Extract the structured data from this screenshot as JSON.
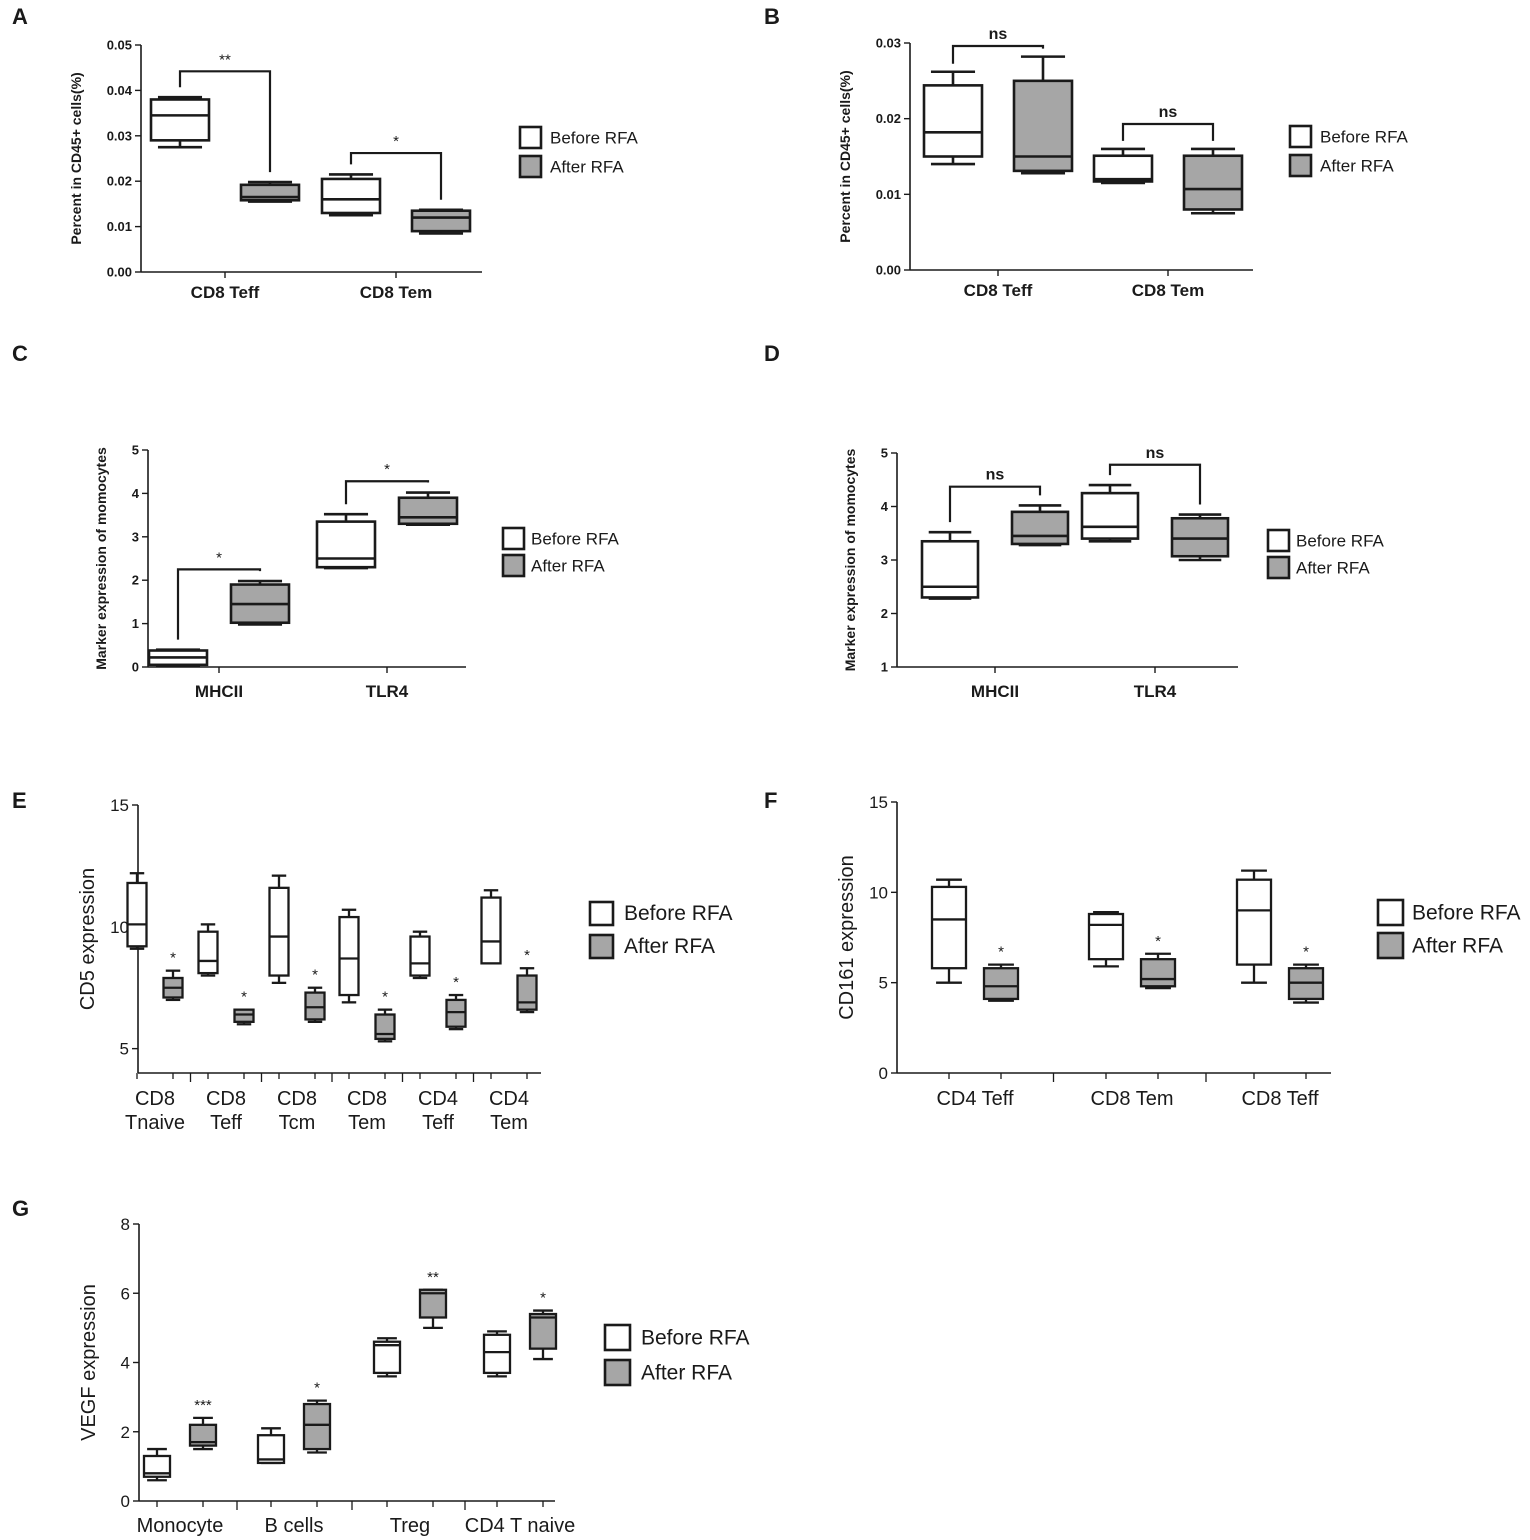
{
  "colors": {
    "before": "#ffffff",
    "after": "#a6a6a6",
    "stroke": "#1a1a1a"
  },
  "chart_data": [
    {
      "panel": "A",
      "type": "box",
      "ylabel": "Percent in CD45+ cells(%)",
      "ylim": [
        0,
        0.05
      ],
      "yticks": [
        0,
        0.01,
        0.02,
        0.03,
        0.04,
        0.05
      ],
      "ytick_labels": [
        "0.00",
        "0.01",
        "0.02",
        "0.03",
        "0.04",
        "0.05"
      ],
      "categories": [
        "CD8 Teff",
        "CD8 Tem"
      ],
      "legend": [
        "Before RFA",
        "After RFA"
      ],
      "series": [
        {
          "name": "Before RFA",
          "boxes": [
            {
              "min": 0.0275,
              "q1": 0.029,
              "median": 0.0345,
              "q3": 0.038,
              "max": 0.0385
            },
            {
              "min": 0.0125,
              "q1": 0.013,
              "median": 0.016,
              "q3": 0.0205,
              "max": 0.0215
            }
          ]
        },
        {
          "name": "After RFA",
          "boxes": [
            {
              "min": 0.0155,
              "q1": 0.0158,
              "median": 0.0165,
              "q3": 0.0192,
              "max": 0.0198
            },
            {
              "min": 0.0085,
              "q1": 0.009,
              "median": 0.012,
              "q3": 0.0135,
              "max": 0.0137
            }
          ]
        }
      ],
      "significance": [
        {
          "category": 0,
          "label": "**",
          "level": 0.0442
        },
        {
          "category": 1,
          "label": "*",
          "level": 0.0262
        }
      ]
    },
    {
      "panel": "B",
      "type": "box",
      "ylabel": "Percent in CD45+ cells(%)",
      "ylim": [
        0,
        0.03
      ],
      "yticks": [
        0,
        0.01,
        0.02,
        0.03
      ],
      "ytick_labels": [
        "0.00",
        "0.01",
        "0.02",
        "0.03"
      ],
      "categories": [
        "CD8 Teff",
        "CD8 Tem"
      ],
      "legend": [
        "Before RFA",
        "After RFA"
      ],
      "series": [
        {
          "name": "Before RFA",
          "boxes": [
            {
              "min": 0.014,
              "q1": 0.015,
              "median": 0.0182,
              "q3": 0.0244,
              "max": 0.0262
            },
            {
              "min": 0.0115,
              "q1": 0.0117,
              "median": 0.012,
              "q3": 0.0151,
              "max": 0.016
            }
          ]
        },
        {
          "name": "After RFA",
          "boxes": [
            {
              "min": 0.0128,
              "q1": 0.0131,
              "median": 0.015,
              "q3": 0.025,
              "max": 0.0282
            },
            {
              "min": 0.0075,
              "q1": 0.008,
              "median": 0.0107,
              "q3": 0.0151,
              "max": 0.016
            }
          ]
        }
      ],
      "significance": [
        {
          "category": 0,
          "label": "ns",
          "level": 0.0296
        },
        {
          "category": 1,
          "label": "ns",
          "level": 0.0193
        }
      ]
    },
    {
      "panel": "C",
      "type": "box",
      "ylabel": "Marker expression of momocytes",
      "ylim": [
        0,
        5
      ],
      "yticks": [
        0,
        1,
        2,
        3,
        4,
        5
      ],
      "ytick_labels": [
        "0",
        "1",
        "2",
        "3",
        "4",
        "5"
      ],
      "categories": [
        "MHCII",
        "TLR4"
      ],
      "legend": [
        "Before RFA",
        "After RFA"
      ],
      "series": [
        {
          "name": "Before RFA",
          "boxes": [
            {
              "min": 0.03,
              "q1": 0.05,
              "median": 0.22,
              "q3": 0.38,
              "max": 0.4
            },
            {
              "min": 2.28,
              "q1": 2.3,
              "median": 2.5,
              "q3": 3.35,
              "max": 3.52
            }
          ]
        },
        {
          "name": "After RFA",
          "boxes": [
            {
              "min": 0.98,
              "q1": 1.02,
              "median": 1.45,
              "q3": 1.9,
              "max": 1.98
            },
            {
              "min": 3.28,
              "q1": 3.3,
              "median": 3.45,
              "q3": 3.9,
              "max": 4.02
            }
          ]
        }
      ],
      "significance": [
        {
          "category": 0,
          "label": "*",
          "level": 2.25
        },
        {
          "category": 1,
          "label": "*",
          "level": 4.28
        }
      ]
    },
    {
      "panel": "D",
      "type": "box",
      "ylabel": "Marker expression of momocytes",
      "ylim": [
        1,
        5
      ],
      "yticks": [
        1,
        2,
        3,
        4,
        5
      ],
      "ytick_labels": [
        "1",
        "2",
        "3",
        "4",
        "5"
      ],
      "categories": [
        "MHCII",
        "TLR4"
      ],
      "legend": [
        "Before RFA",
        "After RFA"
      ],
      "series": [
        {
          "name": "Before RFA",
          "boxes": [
            {
              "min": 2.28,
              "q1": 2.3,
              "median": 2.5,
              "q3": 3.35,
              "max": 3.52
            },
            {
              "min": 3.35,
              "q1": 3.4,
              "median": 3.62,
              "q3": 4.25,
              "max": 4.4
            }
          ]
        },
        {
          "name": "After RFA",
          "boxes": [
            {
              "min": 3.28,
              "q1": 3.3,
              "median": 3.45,
              "q3": 3.9,
              "max": 4.02
            },
            {
              "min": 3.0,
              "q1": 3.07,
              "median": 3.4,
              "q3": 3.78,
              "max": 3.85
            }
          ]
        }
      ],
      "significance": [
        {
          "category": 0,
          "label": "ns",
          "level": 4.37
        },
        {
          "category": 1,
          "label": "ns",
          "level": 4.78
        }
      ]
    },
    {
      "panel": "E",
      "type": "box",
      "ylabel": "CD5 expression",
      "ylim": [
        4,
        15
      ],
      "yticks": [
        5,
        10,
        15
      ],
      "ytick_labels": [
        "5",
        "10",
        "15"
      ],
      "categories": [
        "CD8 Tnaive",
        "CD8 Teff",
        "CD8 Tcm",
        "CD8 Tem",
        "CD4 Teff",
        "CD4 Tem"
      ],
      "legend": [
        "Before RFA",
        "After RFA"
      ],
      "series": [
        {
          "name": "Before RFA",
          "boxes": [
            {
              "min": 9.1,
              "q1": 9.2,
              "median": 10.1,
              "q3": 11.8,
              "max": 12.2
            },
            {
              "min": 8.0,
              "q1": 8.1,
              "median": 8.6,
              "q3": 9.8,
              "max": 10.1
            },
            {
              "min": 7.7,
              "q1": 8.0,
              "median": 9.6,
              "q3": 11.6,
              "max": 12.1
            },
            {
              "min": 6.9,
              "q1": 7.2,
              "median": 8.7,
              "q3": 10.4,
              "max": 10.7
            },
            {
              "min": 7.9,
              "q1": 8.0,
              "median": 8.5,
              "q3": 9.6,
              "max": 9.8
            },
            {
              "min": 8.5,
              "q1": 8.5,
              "median": 9.4,
              "q3": 11.2,
              "max": 11.5
            }
          ]
        },
        {
          "name": "After RFA",
          "boxes": [
            {
              "min": 7.0,
              "q1": 7.1,
              "median": 7.5,
              "q3": 7.9,
              "max": 8.2
            },
            {
              "min": 6.0,
              "q1": 6.1,
              "median": 6.4,
              "q3": 6.6,
              "max": 6.6
            },
            {
              "min": 6.1,
              "q1": 6.2,
              "median": 6.7,
              "q3": 7.3,
              "max": 7.5
            },
            {
              "min": 5.3,
              "q1": 5.4,
              "median": 5.6,
              "q3": 6.4,
              "max": 6.6
            },
            {
              "min": 5.8,
              "q1": 5.9,
              "median": 6.5,
              "q3": 7.0,
              "max": 7.2
            },
            {
              "min": 6.5,
              "q1": 6.6,
              "median": 6.9,
              "q3": 8.0,
              "max": 8.3
            }
          ]
        }
      ],
      "significance": [
        {
          "category": 0,
          "label": "*"
        },
        {
          "category": 1,
          "label": "*"
        },
        {
          "category": 2,
          "label": "*"
        },
        {
          "category": 3,
          "label": "*"
        },
        {
          "category": 4,
          "label": "*"
        },
        {
          "category": 5,
          "label": "*"
        }
      ]
    },
    {
      "panel": "F",
      "type": "box",
      "ylabel": "CD161 expression",
      "ylim": [
        0,
        15
      ],
      "yticks": [
        0,
        5,
        10,
        15
      ],
      "ytick_labels": [
        "0",
        "5",
        "10",
        "15"
      ],
      "categories": [
        "CD4 Teff",
        "CD8 Tem",
        "CD8 Teff"
      ],
      "legend": [
        "Before RFA",
        "After RFA"
      ],
      "series": [
        {
          "name": "Before RFA",
          "boxes": [
            {
              "min": 5.0,
              "q1": 5.8,
              "median": 8.5,
              "q3": 10.3,
              "max": 10.7
            },
            {
              "min": 5.9,
              "q1": 6.3,
              "median": 8.2,
              "q3": 8.8,
              "max": 8.9
            },
            {
              "min": 5.0,
              "q1": 6.0,
              "median": 9.0,
              "q3": 10.7,
              "max": 11.2
            }
          ]
        },
        {
          "name": "After RFA",
          "boxes": [
            {
              "min": 4.0,
              "q1": 4.1,
              "median": 4.8,
              "q3": 5.8,
              "max": 6.0
            },
            {
              "min": 4.7,
              "q1": 4.8,
              "median": 5.2,
              "q3": 6.3,
              "max": 6.6
            },
            {
              "min": 3.9,
              "q1": 4.1,
              "median": 5.0,
              "q3": 5.8,
              "max": 6.0
            }
          ]
        }
      ],
      "significance": [
        {
          "category": 0,
          "label": "*"
        },
        {
          "category": 1,
          "label": "*"
        },
        {
          "category": 2,
          "label": "*"
        }
      ]
    },
    {
      "panel": "G",
      "type": "box",
      "ylabel": "VEGF expression",
      "ylim": [
        0,
        8
      ],
      "yticks": [
        0,
        2,
        4,
        6,
        8
      ],
      "ytick_labels": [
        "0",
        "2",
        "4",
        "6",
        "8"
      ],
      "categories": [
        "Monocyte",
        "B cells",
        "Treg",
        "CD4 T naive"
      ],
      "legend": [
        "Before RFA",
        "After RFA"
      ],
      "series": [
        {
          "name": "Before RFA",
          "boxes": [
            {
              "min": 0.6,
              "q1": 0.7,
              "median": 0.8,
              "q3": 1.3,
              "max": 1.5
            },
            {
              "min": 1.1,
              "q1": 1.1,
              "median": 1.2,
              "q3": 1.9,
              "max": 2.1
            },
            {
              "min": 3.6,
              "q1": 3.7,
              "median": 4.5,
              "q3": 4.6,
              "max": 4.7
            },
            {
              "min": 3.6,
              "q1": 3.7,
              "median": 4.3,
              "q3": 4.8,
              "max": 4.9
            }
          ]
        },
        {
          "name": "After RFA",
          "boxes": [
            {
              "min": 1.5,
              "q1": 1.6,
              "median": 1.7,
              "q3": 2.2,
              "max": 2.4
            },
            {
              "min": 1.4,
              "q1": 1.5,
              "median": 2.2,
              "q3": 2.8,
              "max": 2.9
            },
            {
              "min": 5.0,
              "q1": 5.3,
              "median": 6.0,
              "q3": 6.1,
              "max": 6.1
            },
            {
              "min": 4.1,
              "q1": 4.4,
              "median": 5.3,
              "q3": 5.4,
              "max": 5.5
            }
          ]
        }
      ],
      "significance": [
        {
          "category": 0,
          "label": "***"
        },
        {
          "category": 1,
          "label": "*"
        },
        {
          "category": 2,
          "label": "**"
        },
        {
          "category": 3,
          "label": "*"
        }
      ]
    }
  ]
}
